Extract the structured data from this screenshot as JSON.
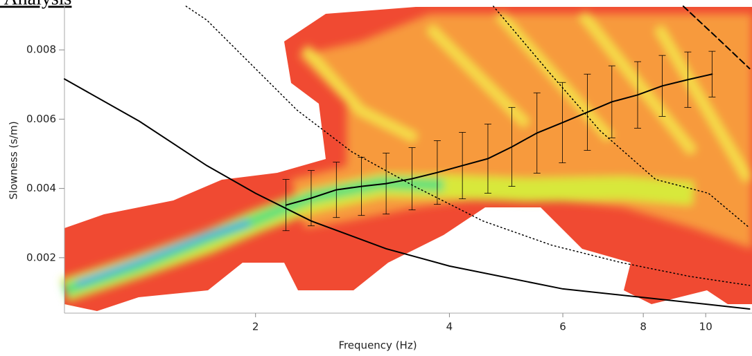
{
  "chart_data": {
    "type": "line",
    "title": "k Analysis",
    "xlabel": "Frequency (Hz)",
    "ylabel": "Slowness (s/m)",
    "xscale": "log",
    "xlim": [
      1.01,
      11.8
    ],
    "ylim": [
      0.0004,
      0.0094
    ],
    "xticks": [
      2,
      4,
      6,
      8,
      10
    ],
    "yticks": [
      0.002,
      0.004,
      0.006,
      0.008
    ],
    "series": [
      {
        "color": "#000000",
        "style": "solid",
        "width": 2,
        "x": [
          2.23,
          2.44,
          2.67,
          2.92,
          3.19,
          3.5,
          3.83,
          4.19,
          4.59,
          5.0,
          5.47,
          5.99,
          6.55,
          7.15,
          7.84,
          8.56,
          9.38,
          10.23
        ],
        "values": [
          0.00352,
          0.00372,
          0.00396,
          0.00406,
          0.00414,
          0.00428,
          0.00446,
          0.00466,
          0.00486,
          0.0052,
          0.0056,
          0.0059,
          0.0062,
          0.0065,
          0.0067,
          0.00696,
          0.00714,
          0.0073
        ],
        "errors": [
          0.00074,
          0.0008,
          0.0008,
          0.00084,
          0.00088,
          0.0009,
          0.00092,
          0.00096,
          0.001,
          0.00114,
          0.00116,
          0.00116,
          0.0011,
          0.00104,
          0.00096,
          0.00088,
          0.0008,
          0.00066
        ]
      },
      {
        "color": "#000000",
        "style": "solid",
        "width": 2,
        "x": [
          1.01,
          1.32,
          1.68,
          2,
          2.44,
          3.19,
          4,
          6,
          10,
          11.7
        ],
        "values": [
          0.00716,
          0.00594,
          0.00466,
          0.00386,
          0.00306,
          0.00226,
          0.00176,
          0.0011,
          0.00066,
          0.00052
        ]
      },
      {
        "color": "#000000",
        "style": "dotted",
        "width": 1.5,
        "x": [
          1.56,
          1.68,
          2.32,
          2.82,
          3.53,
          4.51,
          5.77,
          7.39,
          9.45,
          11.7
        ],
        "values": [
          0.00926,
          0.00886,
          0.00626,
          0.00506,
          0.00406,
          0.00306,
          0.00236,
          0.00186,
          0.00146,
          0.0012
        ]
      },
      {
        "color": "#000000",
        "style": "dotted",
        "width": 1.5,
        "x": [
          4.68,
          5.77,
          6.86,
          8.36,
          10.1,
          11.7
        ],
        "values": [
          0.00926,
          0.00726,
          0.00566,
          0.00426,
          0.00386,
          0.00286
        ]
      },
      {
        "color": "#000000",
        "style": "dashed",
        "width": 2,
        "x": [
          9.23,
          10.4,
          11.7
        ],
        "values": [
          0.00926,
          0.00836,
          0.00746
        ]
      }
    ]
  }
}
